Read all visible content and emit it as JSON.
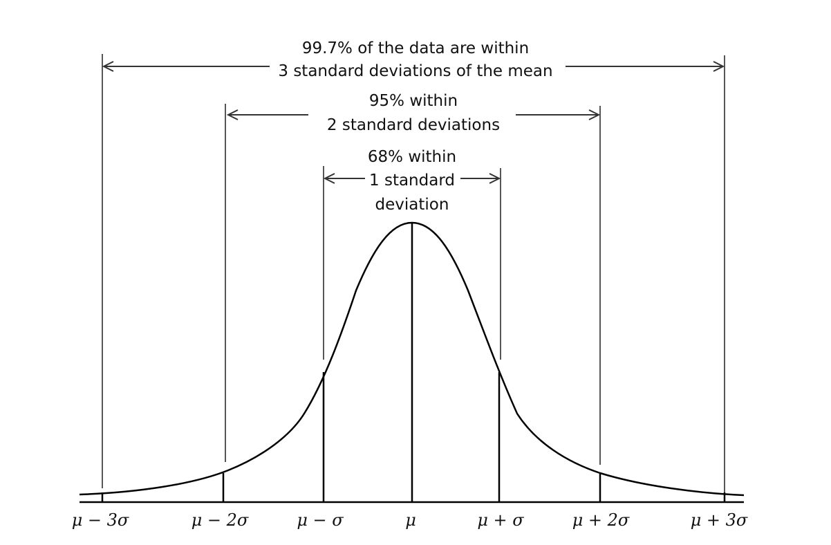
{
  "annotations": {
    "outer": {
      "line1": "99.7% of the data are within",
      "line2": "3 standard deviations of the mean"
    },
    "middle": {
      "line1": "95% within",
      "line2": "2 standard deviations"
    },
    "inner": {
      "line1": "68% within",
      "line2": "1 standard",
      "line3": "deviation"
    }
  },
  "axis_labels": {
    "minus3": "μ − 3σ",
    "minus2": "μ − 2σ",
    "minus1": "μ − σ",
    "mean": "μ",
    "plus1": "μ + σ",
    "plus2": "μ + 2σ",
    "plus3": "μ + 3σ"
  }
}
